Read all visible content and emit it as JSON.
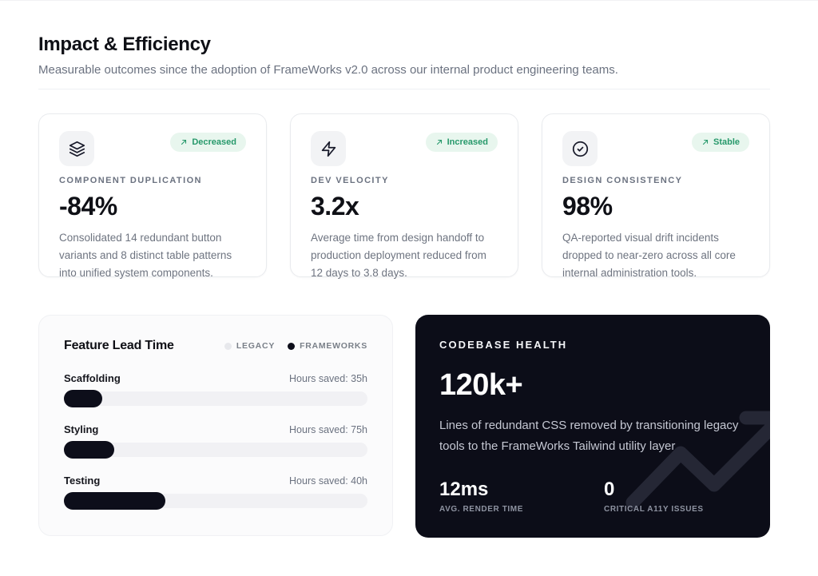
{
  "page": {
    "title": "Impact & Efficiency",
    "subtitle": "Measurable outcomes since the adoption of FrameWorks v2.0 across our internal product engineering teams."
  },
  "colors": {
    "accent_green": "#27996b",
    "badge_bg": "#e8f6ee",
    "dark_card_bg": "#0c0d18",
    "bar_fill": "#0d0e1a",
    "bar_track": "#f1f1f4"
  },
  "metrics": [
    {
      "icon": "layers-icon",
      "badge": "Decreased",
      "label": "COMPONENT DUPLICATION",
      "value": "-84%",
      "description": "Consolidated 14 redundant button variants and 8 distinct table patterns into unified system components."
    },
    {
      "icon": "zap-icon",
      "badge": "Increased",
      "label": "DEV VELOCITY",
      "value": "3.2x",
      "description": "Average time from design handoff to production deployment reduced from 12 days to 3.8 days."
    },
    {
      "icon": "check-circle-icon",
      "badge": "Stable",
      "label": "DESIGN CONSISTENCY",
      "value": "98%",
      "description": "QA-reported visual drift incidents dropped to near-zero across all core internal administration tools."
    }
  ],
  "chart_data": {
    "type": "bar",
    "title": "Feature Lead Time",
    "legend": [
      {
        "label": "LEGACY",
        "color": "#e7e8ec"
      },
      {
        "label": "FRAMEWORKS",
        "color": "#0d0e1a"
      }
    ],
    "categories": [
      "Scaffolding",
      "Styling",
      "Testing"
    ],
    "series": [
      {
        "name": "FRAMEWORKS",
        "fill_percent": [
          12.5,
          16.7,
          33.5
        ]
      }
    ],
    "rows": [
      {
        "label": "Scaffolding",
        "hours": "Hours saved: 35h",
        "fill_pct": 12.5
      },
      {
        "label": "Styling",
        "hours": "Hours saved: 75h",
        "fill_pct": 16.7
      },
      {
        "label": "Testing",
        "hours": "Hours saved: 40h",
        "fill_pct": 33.5
      }
    ],
    "xlabel": "",
    "ylabel": "",
    "grid": false,
    "legend_position": "top-right"
  },
  "codebase": {
    "title": "CODEBASE HEALTH",
    "value": "120k+",
    "description": "Lines of redundant CSS removed by transitioning legacy tools to the FrameWorks Tailwind utility layer.",
    "stats": [
      {
        "value": "12ms",
        "label": "AVG. RENDER TIME"
      },
      {
        "value": "0",
        "label": "CRITICAL A11Y ISSUES"
      }
    ]
  }
}
